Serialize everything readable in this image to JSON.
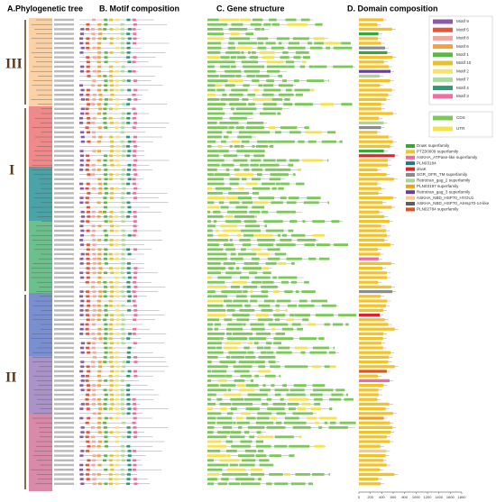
{
  "panels": {
    "a": "A.Phylogenetic tree",
    "b": "B. Motif composition",
    "c": "C. Gene structure",
    "d": "D. Domain composition"
  },
  "groups": [
    "III",
    "I",
    "II"
  ],
  "motif_legend": [
    {
      "name": "Motif 9",
      "color": "#8a5aa8"
    },
    {
      "name": "Motif 5",
      "color": "#e5533b"
    },
    {
      "name": "Motif 8",
      "color": "#f2a7a0"
    },
    {
      "name": "Motif 6",
      "color": "#f4a23c"
    },
    {
      "name": "Motif 1",
      "color": "#58b947"
    },
    {
      "name": "Motif 10",
      "color": "#e8c12a"
    },
    {
      "name": "Motif 2",
      "color": "#f7e36b"
    },
    {
      "name": "Motif 7",
      "color": "#a9dca0"
    },
    {
      "name": "Motif 4",
      "color": "#2e9a7a"
    },
    {
      "name": "Motif 3",
      "color": "#ee6fa0"
    }
  ],
  "structure_legend": [
    {
      "name": "CDS",
      "color": "#7cc95a"
    },
    {
      "name": "UTR",
      "color": "#f5e34a"
    }
  ],
  "domain_legend": [
    {
      "name": "DnaK superfamily",
      "color": "#3aa635"
    },
    {
      "name": "PTZ00009 superfamily",
      "color": "#f6c223"
    },
    {
      "name": "ASKHA_ATPase-like superfamily",
      "color": "#ef6aa0"
    },
    {
      "name": "PLN03184",
      "color": "#1e7a78"
    },
    {
      "name": "dnaK",
      "color": "#e3202a"
    },
    {
      "name": "SGR_OFR_TM superfamily",
      "color": "#8c8c8c"
    },
    {
      "name": "Retrotran_gag_2 superfamily",
      "color": "#a6d88e"
    },
    {
      "name": "PLN03197 superfamily",
      "color": "#f29f1f"
    },
    {
      "name": "Retrotran_gag_3 superfamily",
      "color": "#6a3d9a"
    },
    {
      "name": "ASKHA_NBD_HSP70_HYOU1",
      "color": "#f7c98a"
    },
    {
      "name": "ASKHA_NBD_HSP70_AtHsp70-14-like",
      "color": "#5f5f5f"
    },
    {
      "name": "PLN02784 superfamily",
      "color": "#e0521f"
    }
  ],
  "domain_axis": {
    "xlim": [
      0,
      1800
    ],
    "xticks": [
      0,
      200,
      400,
      600,
      800,
      1000,
      1200,
      1400,
      1600,
      1800
    ]
  }
}
